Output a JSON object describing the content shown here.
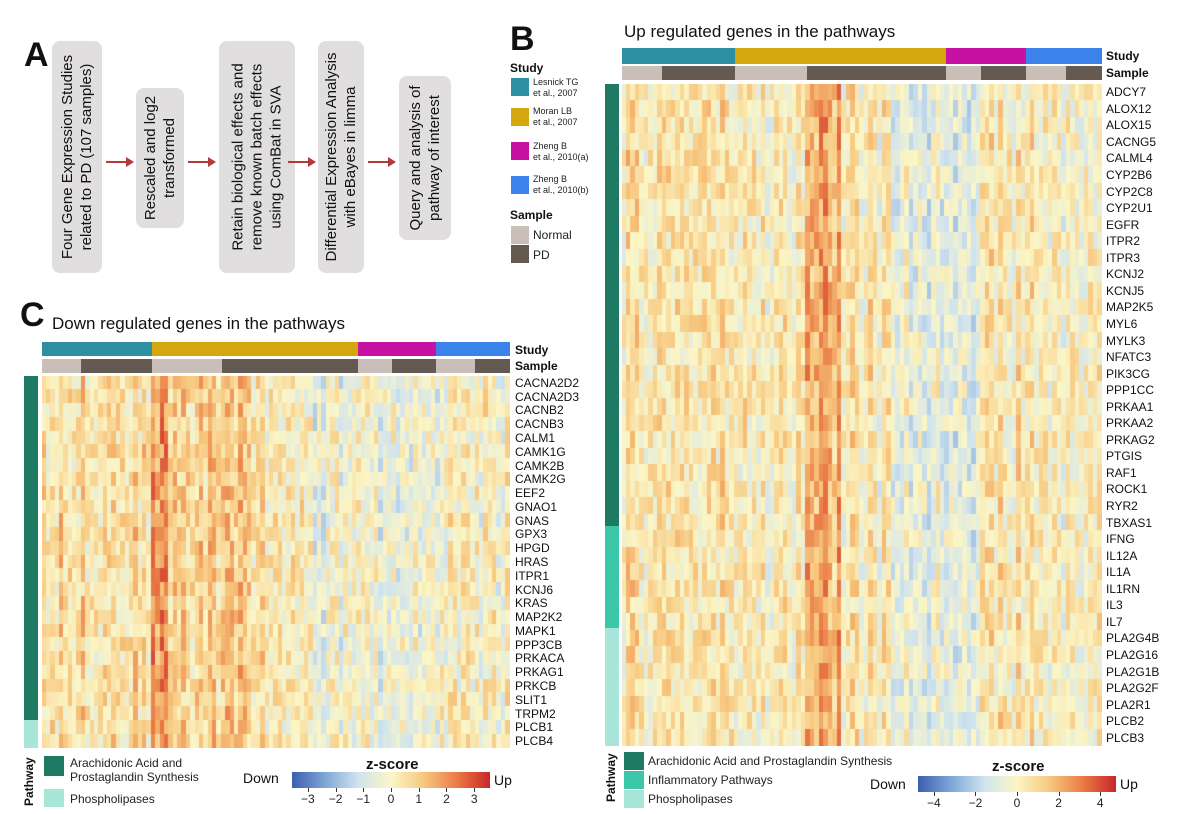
{
  "panel_a": {
    "label": "A",
    "steps": [
      "Four Gene Expression Studies\nrelated to PD (107 samples)",
      "Rescaled and log2\ntransformed",
      "Retain biological effects and\nremove known batch effects\nusing ComBat in SVA",
      "Differential Expression Analysis\nwith eBayes in limma",
      "Query and analysis of\npathway of interest"
    ]
  },
  "panel_b": {
    "label": "B",
    "title": "Up regulated genes in the pathways",
    "row_labels": {
      "study": "Study",
      "sample": "Sample"
    },
    "legend": {
      "study_title": "Study",
      "studies": [
        {
          "name": "Lesnick TG\net al., 2007",
          "color": "#2e8fa3"
        },
        {
          "name": "Moran LB\net al., 2007",
          "color": "#d4a70e"
        },
        {
          "name": "Zheng B\net al., 2010(a)",
          "color": "#c512a3"
        },
        {
          "name": "Zheng B\net al., 2010(b)",
          "color": "#3b82ea"
        }
      ],
      "sample_title": "Sample",
      "samples": [
        {
          "name": "Normal",
          "color": "#c9bfb8"
        },
        {
          "name": "PD",
          "color": "#655a52"
        }
      ]
    },
    "genes": [
      "ADCY7",
      "ALOX12",
      "ALOX15",
      "CACNG5",
      "CALML4",
      "CYP2B6",
      "CYP2C8",
      "CYP2U1",
      "EGFR",
      "ITPR2",
      "ITPR3",
      "KCNJ2",
      "KCNJ5",
      "MAP2K5",
      "MYL6",
      "MYLK3",
      "NFATC3",
      "PIK3CG",
      "PPP1CC",
      "PRKAA1",
      "PRKAA2",
      "PRKAG2",
      "PTGIS",
      "RAF1",
      "ROCK1",
      "RYR2",
      "TBXAS1",
      "IFNG",
      "IL12A",
      "IL1A",
      "IL1RN",
      "IL3",
      "IL7",
      "PLA2G4B",
      "PLA2G16",
      "PLA2G1B",
      "PLA2G2F",
      "PLA2R1",
      "PLCB2",
      "PLCB3"
    ],
    "pathway_title": "Pathway",
    "pathways": [
      {
        "name": "Arachidonic Acid and Prostaglandin Synthesis",
        "color": "#1f7a64"
      },
      {
        "name": "Inflammatory Pathways",
        "color": "#3cc7a8"
      },
      {
        "name": "Phospholipases",
        "color": "#a9e6da"
      }
    ],
    "colorbar": {
      "title": "z-score",
      "low": "Down",
      "high": "Up",
      "ticks": [
        "−4",
        "−2",
        "0",
        "2",
        "4"
      ]
    }
  },
  "panel_c": {
    "label": "C",
    "title": "Down regulated genes in the pathways",
    "row_labels": {
      "study": "Study",
      "sample": "Sample"
    },
    "genes": [
      "CACNA2D2",
      "CACNA2D3",
      "CACNB2",
      "CACNB3",
      "CALM1",
      "CAMK1G",
      "CAMK2B",
      "CAMK2G",
      "EEF2",
      "GNAO1",
      "GNAS",
      "GPX3",
      "HPGD",
      "HRAS",
      "ITPR1",
      "KCNJ6",
      "KRAS",
      "MAP2K2",
      "MAPK1",
      "PPP3CB",
      "PRKACA",
      "PRKAG1",
      "PRKCB",
      "SLIT1",
      "TRPM2",
      "PLCB1",
      "PLCB4"
    ],
    "pathway_title": "Pathway",
    "pathways": [
      {
        "name": "Arachidonic Acid and\nProstaglandin Synthesis",
        "color": "#1f7a64"
      },
      {
        "name": "Phospholipases",
        "color": "#a9e6da"
      }
    ],
    "colorbar": {
      "title": "z-score",
      "low": "Down",
      "high": "Up",
      "ticks": [
        "−3",
        "−2",
        "−1",
        "0",
        "1",
        "2",
        "3"
      ]
    }
  }
}
